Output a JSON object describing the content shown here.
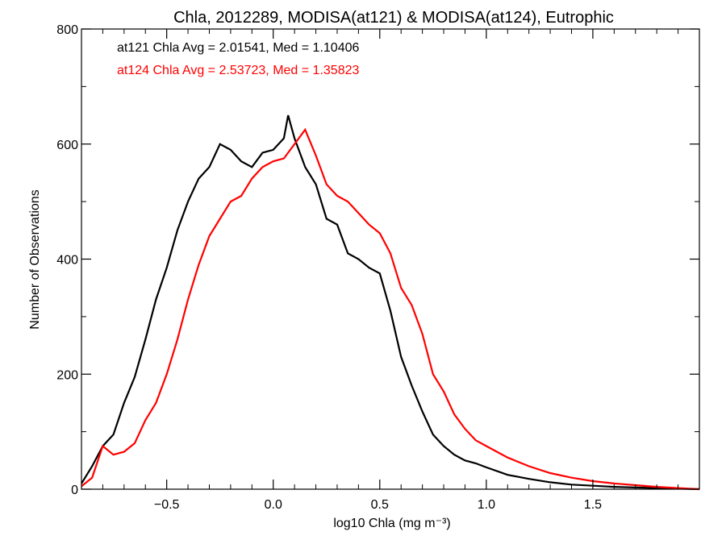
{
  "chart_data": {
    "type": "line",
    "title": "Chla, 2012289, MODISA(at121) & MODISA(at124), Eutrophic",
    "xlabel": "log10 Chla (mg m⁻³)",
    "ylabel": "Number of Observations",
    "xlim": [
      -0.9,
      2.0
    ],
    "ylim": [
      0,
      800
    ],
    "x_ticks": [
      -0.5,
      0.0,
      0.5,
      1.0,
      1.5
    ],
    "x_tick_labels": [
      "−0.5",
      "0.0",
      "0.5",
      "1.0",
      "1.5"
    ],
    "y_ticks": [
      0,
      200,
      400,
      600,
      800
    ],
    "y_tick_labels": [
      "0",
      "200",
      "400",
      "600",
      "800"
    ],
    "grid": false,
    "annotations": [
      {
        "text": "at121 Chla Avg = 2.01541, Med = 1.10406",
        "color": "#000000"
      },
      {
        "text": "at124 Chla Avg = 2.53723, Med = 1.35823",
        "color": "#ff0000"
      }
    ],
    "series": [
      {
        "color": "#000000",
        "x": [
          -0.9,
          -0.85,
          -0.8,
          -0.75,
          -0.7,
          -0.65,
          -0.6,
          -0.55,
          -0.5,
          -0.45,
          -0.4,
          -0.35,
          -0.3,
          -0.25,
          -0.2,
          -0.15,
          -0.1,
          -0.05,
          0.0,
          0.05,
          0.07,
          0.1,
          0.15,
          0.2,
          0.25,
          0.3,
          0.35,
          0.4,
          0.45,
          0.5,
          0.55,
          0.6,
          0.65,
          0.7,
          0.75,
          0.8,
          0.85,
          0.9,
          0.95,
          1.0,
          1.1,
          1.2,
          1.3,
          1.4,
          1.5,
          1.6,
          1.7,
          1.8,
          1.9,
          2.0
        ],
        "y": [
          10,
          40,
          75,
          95,
          150,
          195,
          260,
          330,
          385,
          450,
          500,
          540,
          560,
          600,
          590,
          570,
          560,
          585,
          590,
          610,
          650,
          610,
          560,
          530,
          470,
          460,
          410,
          400,
          385,
          375,
          310,
          230,
          180,
          135,
          95,
          75,
          60,
          50,
          45,
          38,
          25,
          18,
          12,
          8,
          6,
          4,
          3,
          2,
          1,
          0
        ]
      },
      {
        "color": "#ff0000",
        "x": [
          -0.9,
          -0.85,
          -0.8,
          -0.75,
          -0.7,
          -0.65,
          -0.6,
          -0.55,
          -0.5,
          -0.45,
          -0.4,
          -0.35,
          -0.3,
          -0.25,
          -0.2,
          -0.15,
          -0.1,
          -0.05,
          0.0,
          0.05,
          0.1,
          0.15,
          0.2,
          0.25,
          0.3,
          0.35,
          0.4,
          0.45,
          0.5,
          0.55,
          0.6,
          0.65,
          0.7,
          0.75,
          0.8,
          0.85,
          0.9,
          0.95,
          1.0,
          1.05,
          1.1,
          1.2,
          1.3,
          1.4,
          1.5,
          1.6,
          1.7,
          1.8,
          1.9,
          2.0
        ],
        "y": [
          5,
          20,
          75,
          60,
          65,
          80,
          120,
          150,
          200,
          260,
          330,
          390,
          440,
          470,
          500,
          510,
          540,
          560,
          570,
          575,
          600,
          625,
          580,
          530,
          510,
          500,
          480,
          460,
          445,
          410,
          350,
          320,
          270,
          200,
          170,
          130,
          105,
          85,
          75,
          65,
          55,
          40,
          28,
          20,
          14,
          10,
          7,
          4,
          2,
          0
        ]
      }
    ]
  }
}
